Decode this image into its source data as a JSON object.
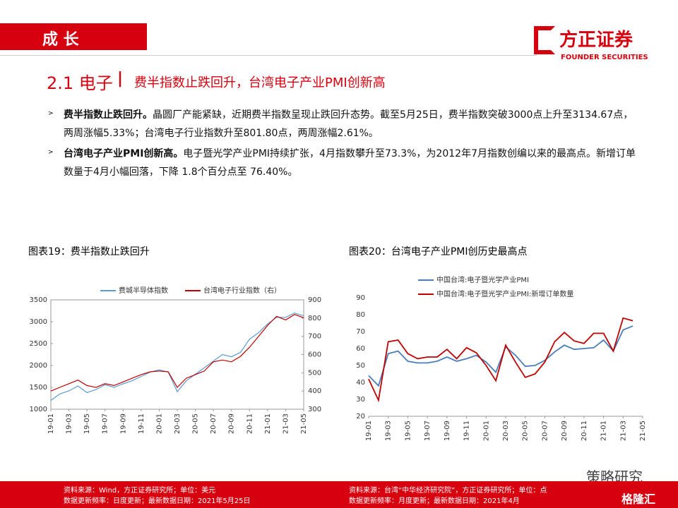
{
  "header": {
    "section": "成 长",
    "logo_name": "方正证券",
    "logo_sub": "FOUNDER SECURITIES"
  },
  "heading": {
    "number": "2.1 电子",
    "separator": "|",
    "title": "费半指数止跌回升，台湾电子产业PMI创新高"
  },
  "bullets": [
    {
      "lead": "费半指数止跌回升。",
      "text": "晶圆厂产能紧缺，近期费半指数呈现止跌回升态势。截至5月25日，费半指数突破3000点上升至3134.67点，两周涨幅5.33%；台湾电子行业指数升至801.80点，两周涨幅2.61%。"
    },
    {
      "lead": "台湾电子产业PMI创新高。",
      "text": "电子暨光学产业PMI持续扩张，4月指数攀升至73.3%，为2012年7月指数创编以来的最高点。新增订单数量于4月小幅回落，下降 1.8个百分点至 76.40%。"
    }
  ],
  "chart_data": [
    {
      "type": "line",
      "title": "图表19：费半指数止跌回升",
      "categories": [
        "19-01",
        null,
        "19-03",
        null,
        "19-05",
        null,
        "19-07",
        null,
        "19-09",
        null,
        "19-11",
        null,
        "20-01",
        null,
        "20-03",
        null,
        "20-05",
        null,
        "20-07",
        null,
        "20-09",
        null,
        "20-11",
        null,
        "21-01",
        null,
        "21-03",
        null,
        "21-05"
      ],
      "series": [
        {
          "name": "费城半导体指数",
          "color": "#5b9bd5",
          "values": [
            1200,
            1350,
            1420,
            1530,
            1380,
            1450,
            1560,
            1500,
            1580,
            1650,
            1750,
            1850,
            1900,
            1850,
            1400,
            1650,
            1800,
            1950,
            2100,
            2250,
            2200,
            2300,
            2600,
            2750,
            2950,
            3100,
            3100,
            3200,
            3134.67
          ]
        },
        {
          "name": "台湾电子行业指数（右）",
          "color": "#c00000",
          "axis": "y2",
          "values": [
            400,
            420,
            440,
            460,
            430,
            420,
            440,
            430,
            450,
            470,
            490,
            505,
            510,
            505,
            420,
            470,
            490,
            510,
            560,
            570,
            560,
            590,
            640,
            700,
            760,
            810,
            790,
            820,
            801.8
          ]
        }
      ],
      "ylim": [
        1000,
        3500
      ],
      "yticks": [
        1000,
        1500,
        2000,
        2500,
        3000,
        3500
      ],
      "y2lim": [
        300,
        900
      ],
      "y2ticks": [
        300,
        400,
        500,
        600,
        700,
        800,
        900
      ],
      "source": "资料来源：Wind，方正证券研究所；单位：美元",
      "update": "数据更新频率：日度更新；最新数据日期：2021年5月25日"
    },
    {
      "type": "line",
      "title": "图表20：台湾电子产业PMI创历史最高点",
      "categories": [
        "19-01",
        null,
        "19-03",
        null,
        "19-05",
        null,
        "19-07",
        null,
        "19-09",
        null,
        "19-11",
        null,
        "20-01",
        null,
        "20-03",
        null,
        "20-05",
        null,
        "20-07",
        null,
        "20-09",
        null,
        "20-11",
        null,
        "21-01",
        null,
        "21-03",
        null,
        "21-05"
      ],
      "series": [
        {
          "name": "中国台湾:电子暨光学产业PMI",
          "color": "#4a7ebb",
          "values": [
            44,
            38,
            57,
            58.5,
            52.5,
            51.5,
            51.5,
            52.5,
            55,
            52.5,
            54,
            56,
            52,
            46,
            61,
            56,
            49.5,
            50,
            53,
            58,
            62,
            59.5,
            60,
            60.5,
            65,
            58.5,
            71,
            73.3,
            null
          ]
        },
        {
          "name": "中国台湾:电子暨光学产业PMI:新增订单数量",
          "color": "#c00000",
          "values": [
            42,
            29.5,
            64,
            65,
            57,
            54,
            55,
            55,
            59.5,
            54,
            60.5,
            57.5,
            50,
            41,
            62,
            52,
            43,
            45,
            52,
            64,
            69.5,
            64.5,
            63,
            69,
            69,
            58.5,
            78,
            76.4,
            null
          ]
        }
      ],
      "ylim": [
        20,
        90
      ],
      "yticks": [
        20,
        30,
        40,
        50,
        60,
        70,
        80,
        90
      ],
      "source": "资料来源：台湾“中华经济研究院”，方正证券研究所；单位：点",
      "update": "数据更新频率：月度更新；最新数据日期：2021年4月"
    }
  ],
  "watermark": {
    "wechat": "策略研究",
    "brand": "格隆汇"
  }
}
